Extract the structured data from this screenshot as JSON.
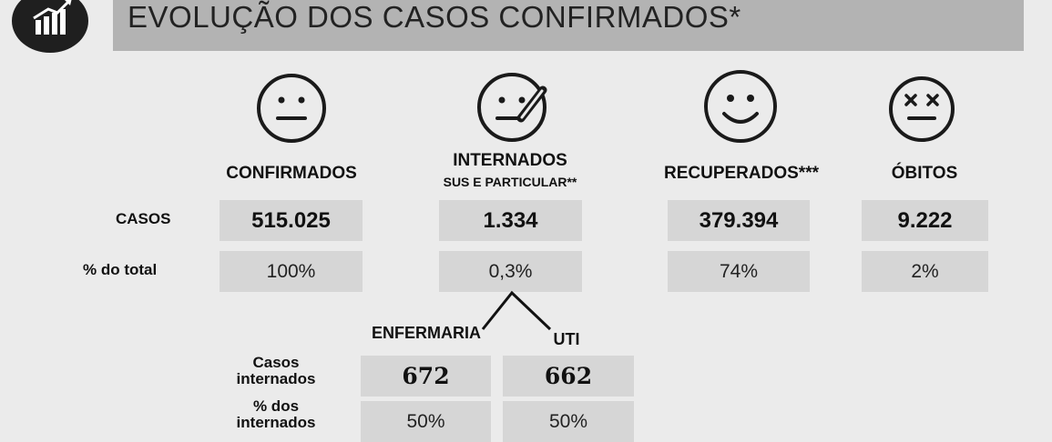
{
  "header": {
    "title": "EVOLUÇÃO DOS CASOS CONFIRMADOS*",
    "logo_icon": "growth-chart-icon"
  },
  "columns": [
    {
      "label": "CONFIRMADOS",
      "icon": "neutral-face-icon",
      "casos": "515.025",
      "percent": "100%"
    },
    {
      "label": "INTERNADOS",
      "sublabel": "SUS E PARTICULAR**",
      "icon": "sick-face-thermometer-icon",
      "casos": "1.334",
      "percent": "0,3%"
    },
    {
      "label": "RECUPERADOS***",
      "icon": "smiling-face-icon",
      "casos": "379.394",
      "percent": "74%"
    },
    {
      "label": "ÓBITOS",
      "icon": "dead-face-icon",
      "casos": "9.222",
      "percent": "2%"
    }
  ],
  "row_labels": {
    "casos": "CASOS",
    "percent": "% do total"
  },
  "breakdown": {
    "enfermaria_label": "ENFERMARIA",
    "uti_label": "UTI",
    "casos_label_line1": "Casos",
    "casos_label_line2": "internados",
    "percent_label_line1": "% dos",
    "percent_label_line2": "internados",
    "enfermaria_casos": "672",
    "uti_casos": "662",
    "enfermaria_percent": "50%",
    "uti_percent": "50%"
  },
  "colors": {
    "background": "#ebebeb",
    "header_bar": "#b3b3b3",
    "value_box": "#d6d6d6"
  }
}
